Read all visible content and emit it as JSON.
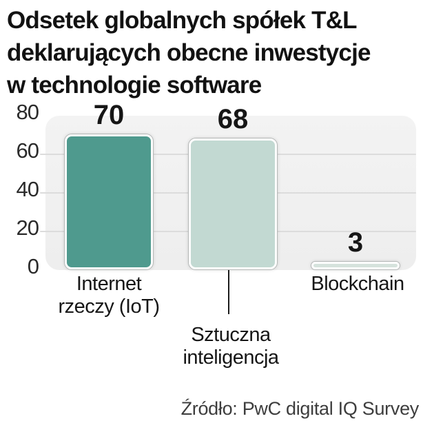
{
  "title": {
    "lines": [
      "Odsetek globalnych spółek T&L",
      "deklarujących obecne inwestycje",
      "w technologie software"
    ]
  },
  "chart_data": {
    "type": "bar",
    "title": "Odsetek globalnych spółek T&L deklarujących obecne inwestycje w technologie software",
    "categories": [
      "Internet rzeczy (IoT)",
      "Sztuczna inteligencja",
      "Blockchain"
    ],
    "values": [
      70,
      68,
      3
    ],
    "xlabel": "",
    "ylabel": "",
    "ylim": [
      0,
      80
    ],
    "yticks": [
      0,
      20,
      40,
      60,
      80
    ],
    "grid": true,
    "legend": "none",
    "bar_colors": [
      "#4f9a8e",
      "#c2d9d2",
      "#d5e2dc"
    ],
    "plot_background": "#f0f0f0",
    "source": "Źródło: PwC digital IQ Survey"
  },
  "yaxis": {
    "ticks": [
      "80",
      "60",
      "40",
      "20",
      "0"
    ]
  },
  "categories_display": [
    {
      "lines": [
        "Internet",
        "rzeczy (IoT)"
      ]
    },
    {
      "lines": [
        "Sztuczna",
        "inteligencja"
      ]
    },
    {
      "lines": [
        "Blockchain"
      ]
    }
  ],
  "source": {
    "text": "Źródło: PwC digital IQ Survey"
  }
}
